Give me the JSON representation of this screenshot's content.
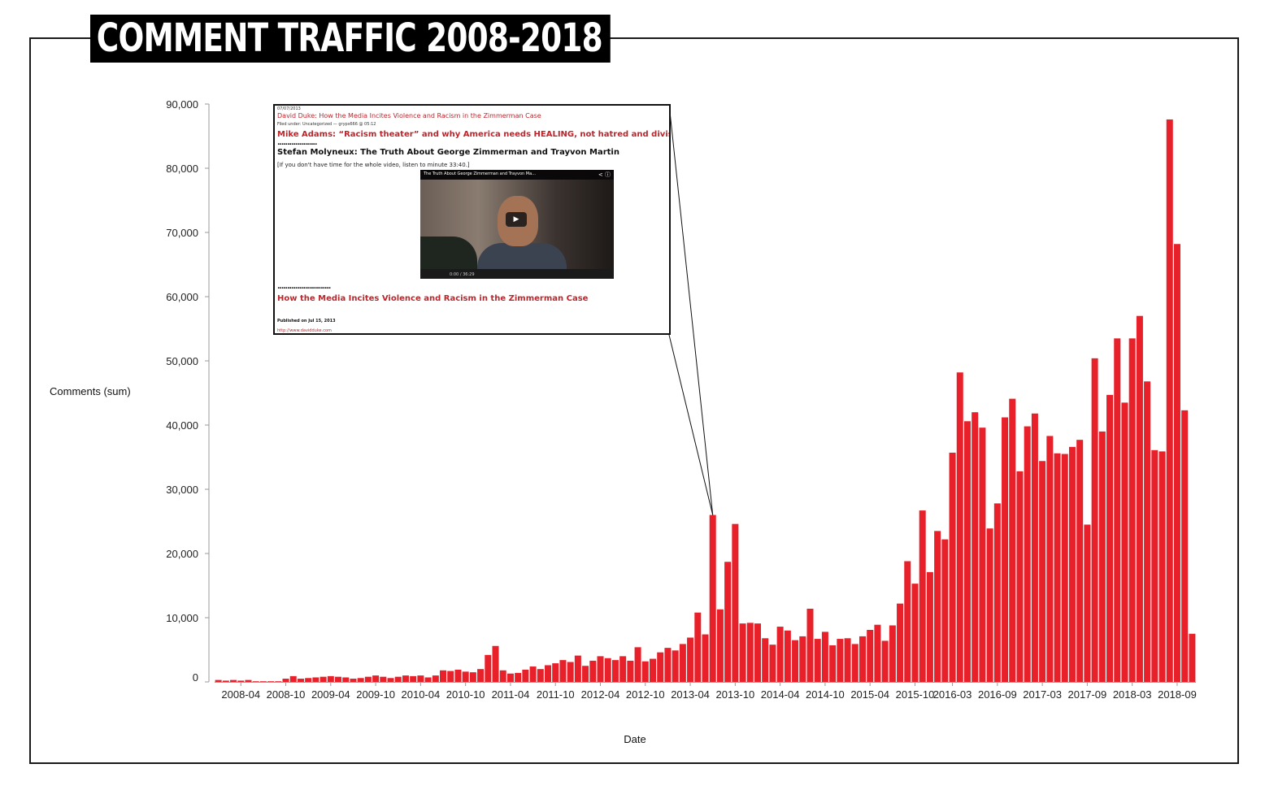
{
  "title": "COMMENT TRAFFIC 2008-2018",
  "chart_data": {
    "type": "bar",
    "title": "COMMENT TRAFFIC 2008-2018",
    "xlabel": "Date",
    "ylabel": "Comments (sum)",
    "ylim": [
      0,
      90000
    ],
    "yticks": [
      0,
      10000,
      20000,
      30000,
      40000,
      50000,
      60000,
      70000,
      80000,
      90000
    ],
    "ytick_labels": [
      "0",
      "10,000",
      "20,000",
      "30,000",
      "40,000",
      "50,000",
      "60,000",
      "70,000",
      "80,000",
      "90,000"
    ],
    "xtick_labels": [
      "2008-04",
      "2008-10",
      "2009-04",
      "2009-10",
      "2010-04",
      "2010-10",
      "2011-04",
      "2011-10",
      "2012-04",
      "2012-10",
      "2013-04",
      "2013-10",
      "2014-04",
      "2014-10",
      "2015-04",
      "2015-10",
      "2016-03",
      "2016-09",
      "2017-03",
      "2017-09",
      "2018-03",
      "2018-09"
    ],
    "xtick_bar_index": [
      3,
      9,
      15,
      21,
      27,
      33,
      39,
      45,
      51,
      57,
      63,
      69,
      75,
      81,
      87,
      93,
      98,
      104,
      110,
      116,
      122,
      128
    ],
    "grid": false,
    "color": "#e8202a",
    "values": [
      300,
      200,
      300,
      200,
      300,
      100,
      100,
      100,
      100,
      500,
      900,
      500,
      600,
      700,
      800,
      900,
      800,
      700,
      500,
      600,
      800,
      1000,
      800,
      600,
      800,
      1000,
      900,
      1000,
      700,
      1000,
      1800,
      1700,
      1900,
      1600,
      1500,
      2000,
      4200,
      5600,
      1800,
      1300,
      1400,
      1900,
      2400,
      2000,
      2600,
      2900,
      3400,
      3100,
      4100,
      2500,
      3300,
      4000,
      3700,
      3400,
      4000,
      3300,
      5400,
      3200,
      3600,
      4600,
      5300,
      4900,
      5900,
      6900,
      10800,
      7400,
      26000,
      11300,
      18700,
      24600,
      9100,
      9200,
      9100,
      6800,
      5800,
      8600,
      8000,
      6500,
      7100,
      11400,
      6700,
      7800,
      5700,
      6700,
      6800,
      5900,
      7100,
      8100,
      8900,
      6400,
      8800,
      12200,
      18800,
      15300,
      26700,
      17100,
      23500,
      22200,
      35700,
      48200,
      40600,
      42000,
      39600,
      23900,
      27800,
      41200,
      44100,
      32800,
      39800,
      41800,
      34400,
      38300,
      35600,
      35500,
      36600,
      37700,
      24500,
      50400,
      39000,
      44700,
      53500,
      43500,
      53500,
      57000,
      46800,
      36100,
      35900,
      87600,
      68200,
      42300,
      7500
    ],
    "annotation_bar_index": 66
  },
  "inset": {
    "date": "07/07/2013",
    "post_title": "David Duke: How the Media Incites Violence and Racism in the Zimmerman Case",
    "filed": "Filed under: Uncategorized — gryps666 @ 05:12",
    "headline1": "Mike Adams: “Racism theater” and why America needs HEALING, not hatred and division",
    "dots1": "....................",
    "headline2": "Stefan Molyneux: The Truth About George Zimmerman and Trayvon Martin",
    "note": "[If you don't have time for the whole video, listen to minute 33:40.]",
    "video_title": "The Truth About George Zimmerman and Trayvon Ma...",
    "video_time": "0:00 / 36:29",
    "dots2": "...........................",
    "headline3": "How the Media Incites Violence and Racism in the Zimmerman Case",
    "published": "Published on Jul 15, 2013",
    "url": "http://www.davidduke.com"
  }
}
